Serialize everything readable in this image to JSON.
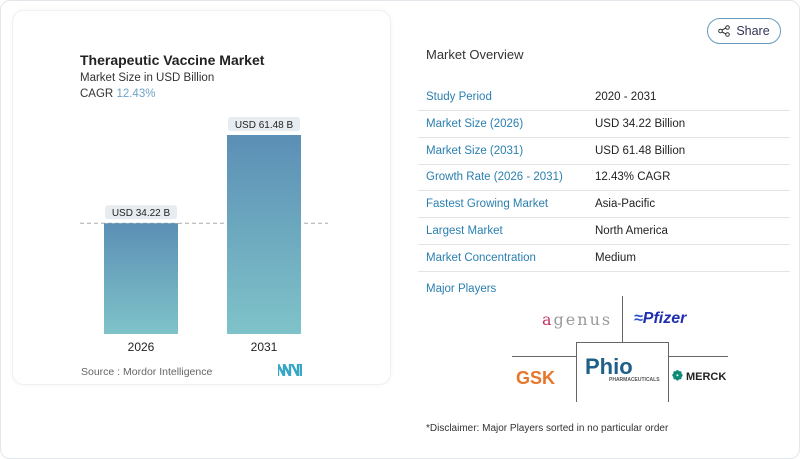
{
  "header": {
    "share_label": "Share"
  },
  "chart_data": {
    "type": "bar",
    "title": "Therapeutic Vaccine Market",
    "subtitle": "Market Size in USD Billion",
    "cagr_label": "CAGR",
    "cagr_value": "12.43%",
    "categories": [
      "2026",
      "2031"
    ],
    "values": [
      34.22,
      61.48
    ],
    "data_labels": [
      "USD 34.22 B",
      "USD 61.48 B"
    ],
    "reference_line": 34.22,
    "ylim": [
      0,
      61.48
    ],
    "colors": {
      "top": "#5b8fb5",
      "bottom": "#7fc3c9"
    },
    "source": "Source :  Mordor Intelligence"
  },
  "overview": {
    "title": "Market Overview",
    "rows": [
      {
        "label": "Study Period",
        "value": "2020 - 2031"
      },
      {
        "label": "Market Size (2026)",
        "value": "USD 34.22 Billion"
      },
      {
        "label": "Market Size (2031)",
        "value": "USD 61.48 Billion"
      },
      {
        "label": "Growth Rate (2026 - 2031)",
        "value": "12.43% CAGR"
      },
      {
        "label": "Fastest Growing Market",
        "value": "Asia-Pacific"
      },
      {
        "label": "Largest Market",
        "value": "North America"
      },
      {
        "label": "Market Concentration",
        "value": "Medium"
      }
    ],
    "major_players_label": "Major Players",
    "players": [
      "agenus",
      "Pfizer",
      "GSK",
      "Phio",
      "MERCK"
    ],
    "phio_sub": "PHARMACEUTICALS",
    "disclaimer": "*Disclaimer: Major Players sorted in no particular order"
  }
}
